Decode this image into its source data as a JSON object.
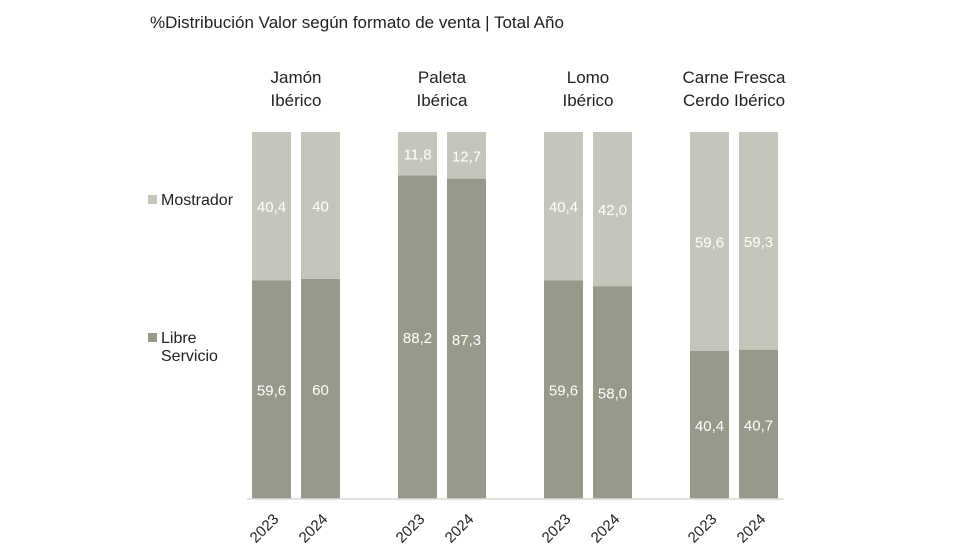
{
  "chart_data": {
    "type": "bar",
    "stacked": true,
    "percent": true,
    "title": "%Distribución Valor según formato de venta | Total Año",
    "groups": [
      {
        "label": [
          "Jamón",
          "Ibérico"
        ],
        "categories": [
          "2023",
          "2024"
        ]
      },
      {
        "label": [
          "Paleta",
          "Ibérica"
        ],
        "categories": [
          "2023",
          "2024"
        ]
      },
      {
        "label": [
          "Lomo",
          "Ibérico"
        ],
        "categories": [
          "2023",
          "2024"
        ]
      },
      {
        "label": [
          "Carne Fresca",
          "Cerdo Ibérico"
        ],
        "categories": [
          "2023",
          "2024"
        ]
      }
    ],
    "series": [
      {
        "name": "Libre Servicio",
        "legend": [
          "Libre",
          "Servicio"
        ],
        "color": "#979a8a",
        "values": [
          59.6,
          60,
          88.2,
          87.3,
          59.6,
          58.0,
          40.4,
          40.7
        ],
        "labels": [
          "59,6",
          "60",
          "88,2",
          "87,3",
          "59,6",
          "58,0",
          "40,4",
          "40,7"
        ]
      },
      {
        "name": "Mostrador",
        "legend": [
          "Mostrador"
        ],
        "color": "#c4c5bb",
        "values": [
          40.4,
          40,
          11.8,
          12.7,
          40.4,
          42.0,
          59.6,
          59.3
        ],
        "labels": [
          "40,4",
          "40",
          "11,8",
          "12,7",
          "40,4",
          "42,0",
          "59,6",
          "59,3"
        ]
      }
    ],
    "ylim": [
      0,
      100
    ],
    "grid": false,
    "legend_position": "left"
  }
}
